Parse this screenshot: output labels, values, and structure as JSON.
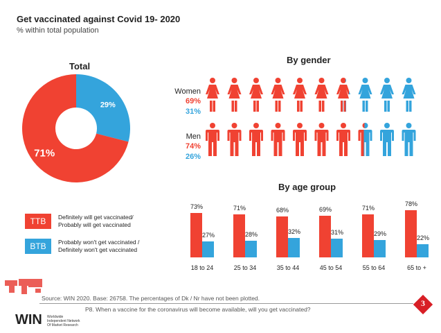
{
  "header": {
    "title": "Get vaccinated against Covid 19- 2020",
    "subtitle": "% within total population"
  },
  "colors": {
    "ttb": "#f04232",
    "btb": "#34a4dc"
  },
  "legend": [
    {
      "code": "TTB",
      "text1": "Definitely will get vaccinated/",
      "text2": "Probably will get vaccinated"
    },
    {
      "code": "BTB",
      "text1": "Probably won't get vaccinated /",
      "text2": "Definitely won't get vaccinated"
    }
  ],
  "footer": {
    "source": "Source: WIN 2020. Base: 26758. The percentages of Dk / Nr have not been plotted.",
    "question": "P8. When a vaccine for the coronavirus will become available, will you get vaccinated?",
    "page": "3",
    "logo": "WIN",
    "logo_sub1": "Worldwide",
    "logo_sub2": "Independent Network",
    "logo_sub3": "Of Market Research"
  },
  "chart_data": [
    {
      "type": "pie",
      "title": "Total",
      "donut": true,
      "slices": [
        {
          "name": "TTB",
          "value": 71,
          "label": "71%"
        },
        {
          "name": "BTB",
          "value": 29,
          "label": "29%"
        }
      ]
    },
    {
      "type": "pictogram",
      "title": "By gender",
      "icons_per_row": 10,
      "rows": [
        {
          "label": "Women",
          "ttb": 69,
          "btb": 31,
          "ttb_label": "69%",
          "btb_label": "31%"
        },
        {
          "label": "Men",
          "ttb": 74,
          "btb": 26,
          "ttb_label": "74%",
          "btb_label": "26%"
        }
      ]
    },
    {
      "type": "bar",
      "title": "By age group",
      "categories": [
        "18 to 24",
        "25 to 34",
        "35 to 44",
        "45 to 54",
        "55 to 64",
        "65 to +"
      ],
      "series": [
        {
          "name": "TTB",
          "values": [
            73,
            71,
            68,
            69,
            71,
            78
          ]
        },
        {
          "name": "BTB",
          "values": [
            27,
            28,
            32,
            31,
            29,
            22
          ]
        }
      ]
    }
  ]
}
